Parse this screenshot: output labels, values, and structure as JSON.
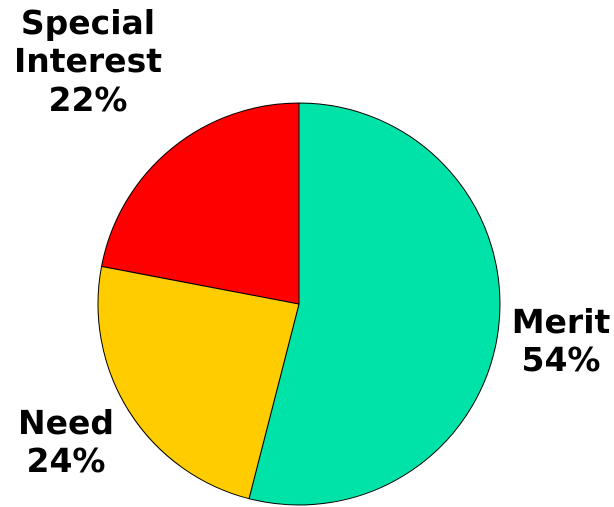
{
  "chart_data": {
    "type": "pie",
    "title": "",
    "slices": [
      {
        "label_lines": [
          "Merit"
        ],
        "percent_text": "54%",
        "value": 54,
        "color": "#00E3A8"
      },
      {
        "label_lines": [
          "Need"
        ],
        "percent_text": "24%",
        "value": 24,
        "color": "#FFCC00"
      },
      {
        "label_lines": [
          "Special",
          "Interest"
        ],
        "percent_text": "22%",
        "value": 22,
        "color": "#FF0000"
      }
    ],
    "start_angle_deg": 0,
    "direction": "clockwise",
    "legend": "none"
  }
}
